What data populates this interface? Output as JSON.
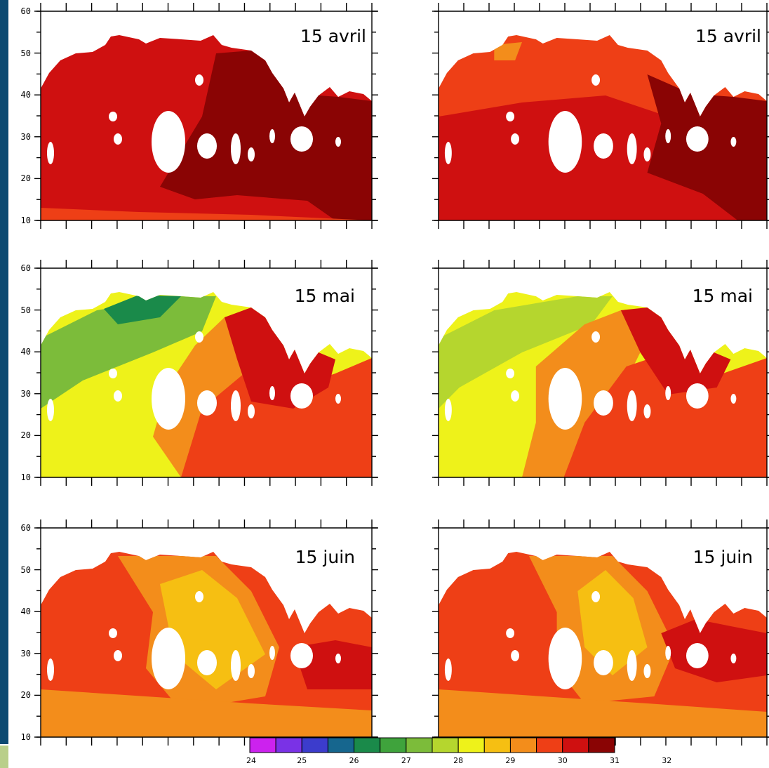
{
  "panels": [
    {
      "id": "p1",
      "column": "left",
      "date": "15 avril",
      "yticks": [
        "60",
        "50",
        "40",
        "30",
        "20",
        "10"
      ]
    },
    {
      "id": "p2",
      "column": "right",
      "date": "15 avril",
      "yticks": []
    },
    {
      "id": "p3",
      "column": "left",
      "date": "15 mai",
      "yticks": [
        "60",
        "50",
        "40",
        "30",
        "20",
        "10"
      ]
    },
    {
      "id": "p4",
      "column": "right",
      "date": "15 mai",
      "yticks": []
    },
    {
      "id": "p5",
      "column": "left",
      "date": "15 juin",
      "yticks": [
        "60",
        "50",
        "40",
        "30",
        "20",
        "10"
      ]
    },
    {
      "id": "p6",
      "column": "right",
      "date": "15 juin",
      "yticks": []
    }
  ],
  "colorbar": {
    "labels": [
      "24",
      "25",
      "26",
      "27",
      "28",
      "29",
      "30",
      "31",
      "32"
    ],
    "colors": [
      "#cc22ee",
      "#7a32e6",
      "#3c3ccc",
      "#16668e",
      "#1a8a4a",
      "#3fa33c",
      "#7cbc3a",
      "#b5d62e",
      "#eef21a",
      "#f6bf12",
      "#f38d1b",
      "#ee3f16",
      "#cf1010",
      "#8a0404"
    ]
  }
}
